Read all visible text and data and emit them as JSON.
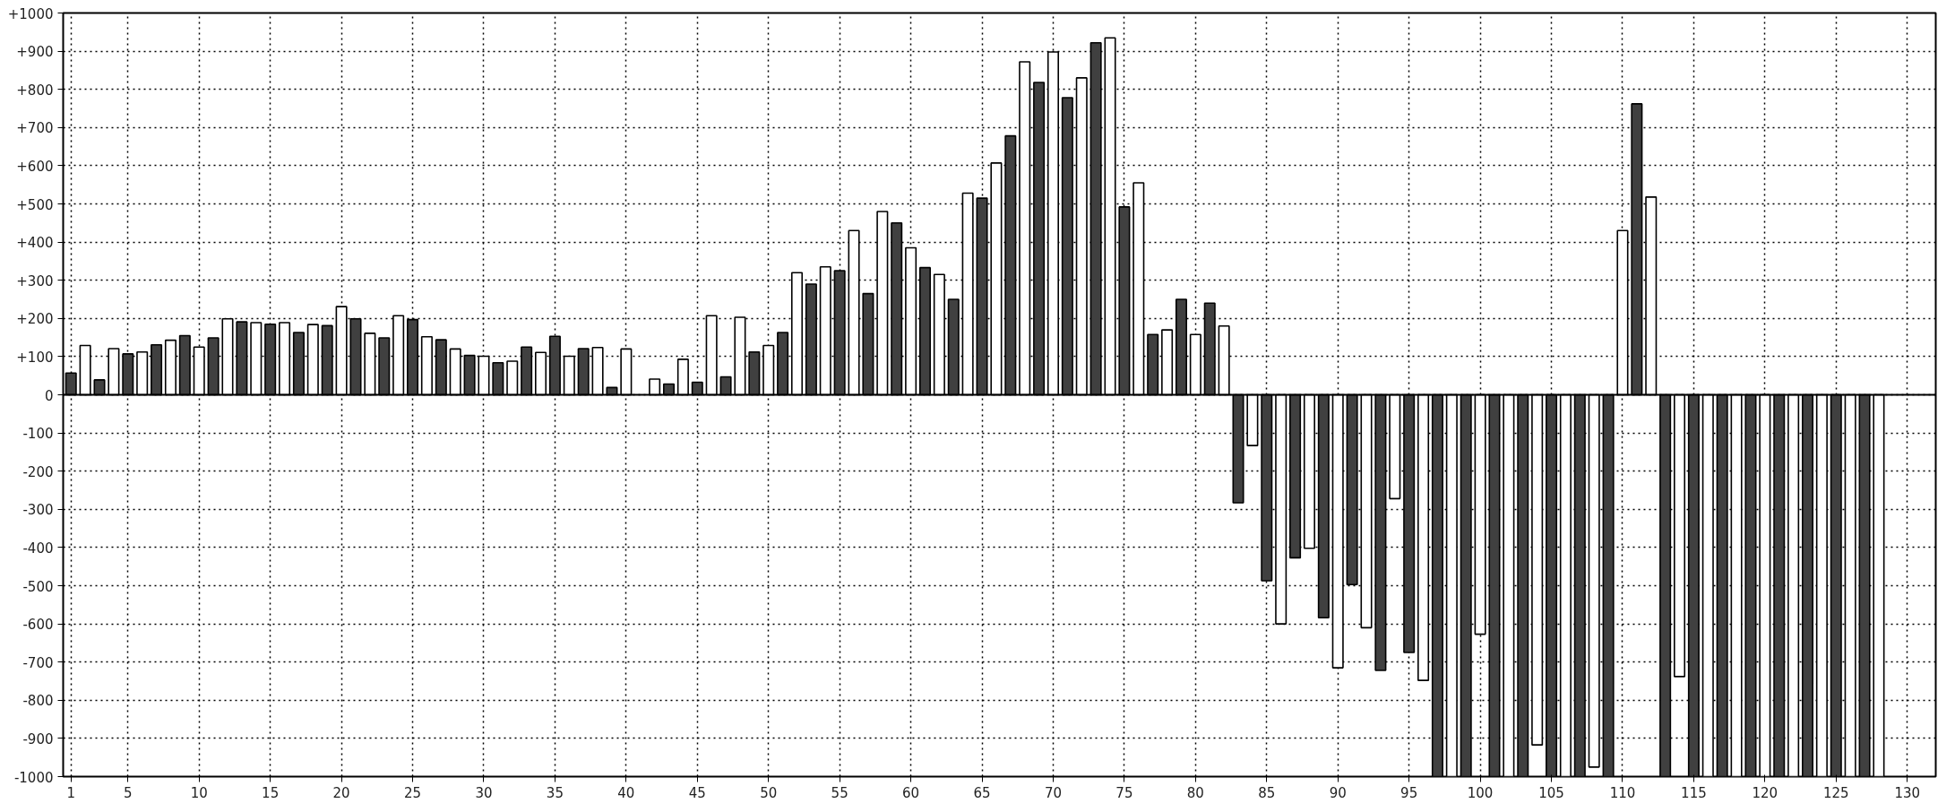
{
  "chart_data": {
    "type": "bar",
    "x": [
      1,
      2,
      3,
      4,
      5,
      6,
      7,
      8,
      9,
      10,
      11,
      12,
      13,
      14,
      15,
      16,
      17,
      18,
      19,
      20,
      21,
      22,
      23,
      24,
      25,
      26,
      27,
      28,
      29,
      30,
      31,
      32,
      33,
      34,
      35,
      36,
      37,
      38,
      39,
      40,
      41,
      42,
      43,
      44,
      45,
      46,
      47,
      48,
      49,
      50,
      51,
      52,
      53,
      54,
      55,
      56,
      57,
      58,
      59,
      60,
      61,
      62,
      63,
      64,
      65,
      66,
      67,
      68,
      69,
      70,
      71,
      72,
      73,
      74,
      75,
      76,
      77,
      78,
      79,
      80,
      81,
      82,
      83,
      84,
      85,
      86,
      87,
      88,
      89,
      90,
      91,
      92,
      93,
      94,
      95,
      96,
      97,
      98,
      99,
      100,
      101,
      102,
      103,
      104,
      105,
      106,
      107,
      108,
      109,
      110,
      111,
      112,
      113,
      114,
      115,
      116,
      117,
      118,
      119,
      120,
      121,
      122,
      123,
      124,
      125,
      126,
      127,
      128
    ],
    "values": [
      57,
      129,
      39,
      121,
      107,
      112,
      131,
      143,
      155,
      125,
      149,
      199,
      191,
      189,
      185,
      189,
      163,
      184,
      181,
      231,
      199,
      161,
      149,
      207,
      197,
      152,
      144,
      120,
      103,
      101,
      84,
      88,
      125,
      111,
      153,
      101,
      121,
      124,
      19,
      120,
      null,
      41,
      28,
      93,
      33,
      207,
      47,
      203,
      112,
      129,
      163,
      320,
      290,
      335,
      325,
      430,
      265,
      480,
      450,
      385,
      333,
      315,
      250,
      528,
      515,
      607,
      678,
      872,
      818,
      898,
      778,
      830,
      922,
      935,
      492,
      555,
      158,
      170,
      250,
      158,
      240,
      180,
      -283,
      -133,
      -487,
      -600,
      -427,
      -402,
      -584,
      -715,
      -497,
      -610,
      -722,
      -272,
      -675,
      -748,
      -1000,
      -1000,
      -1000,
      -627,
      -1000,
      -1000,
      -1000,
      -917,
      -1000,
      -1000,
      -1000,
      -975,
      -1000,
      430,
      762,
      518,
      -1000,
      -738,
      -1000,
      -1000,
      -1000,
      -1000,
      -1000,
      -1000,
      -1000,
      -1000,
      -1000,
      -1000,
      -1000,
      -1000,
      -1000,
      -1000
    ],
    "colors": [
      "#404040",
      "#ffffff",
      "#404040",
      "#ffffff",
      "#404040",
      "#ffffff",
      "#404040",
      "#ffffff",
      "#404040",
      "#ffffff",
      "#404040",
      "#ffffff",
      "#404040",
      "#ffffff",
      "#404040",
      "#ffffff",
      "#404040",
      "#ffffff",
      "#404040",
      "#ffffff",
      "#404040",
      "#ffffff",
      "#404040",
      "#ffffff",
      "#404040",
      "#ffffff",
      "#404040",
      "#ffffff",
      "#404040",
      "#ffffff",
      "#404040",
      "#ffffff",
      "#404040",
      "#ffffff",
      "#404040",
      "#ffffff",
      "#404040",
      "#ffffff",
      "#404040",
      "#ffffff",
      "#404040",
      "#ffffff",
      "#404040",
      "#ffffff",
      "#404040",
      "#ffffff",
      "#404040",
      "#ffffff",
      "#404040",
      "#ffffff",
      "#404040",
      "#ffffff",
      "#404040",
      "#ffffff",
      "#404040",
      "#ffffff",
      "#404040",
      "#ffffff",
      "#404040",
      "#ffffff",
      "#404040",
      "#ffffff",
      "#404040",
      "#ffffff",
      "#404040",
      "#ffffff",
      "#404040",
      "#ffffff",
      "#404040",
      "#ffffff",
      "#404040",
      "#ffffff",
      "#404040",
      "#ffffff",
      "#404040",
      "#ffffff",
      "#404040",
      "#ffffff",
      "#404040",
      "#ffffff",
      "#404040",
      "#ffffff",
      "#404040",
      "#ffffff",
      "#404040",
      "#ffffff",
      "#404040",
      "#ffffff",
      "#404040",
      "#ffffff",
      "#404040",
      "#ffffff",
      "#404040",
      "#ffffff",
      "#404040",
      "#ffffff",
      "#404040",
      "#ffffff",
      "#404040",
      "#ffffff",
      "#404040",
      "#ffffff",
      "#404040",
      "#ffffff",
      "#404040",
      "#ffffff",
      "#404040",
      "#ffffff",
      "#404040",
      "#ffffff",
      "#404040",
      "#ffffff",
      "#404040",
      "#ffffff",
      "#404040",
      "#ffffff",
      "#404040",
      "#ffffff",
      "#404040",
      "#ffffff",
      "#404040",
      "#ffffff",
      "#404040",
      "#ffffff",
      "#404040",
      "#ffffff",
      "#404040",
      "#ffffff"
    ],
    "xlim": [
      0.45,
      132
    ],
    "ylim": [
      -1000,
      1000
    ],
    "xticks": [
      1,
      5,
      10,
      15,
      20,
      25,
      30,
      35,
      40,
      45,
      50,
      55,
      60,
      65,
      70,
      75,
      80,
      85,
      90,
      95,
      100,
      105,
      110,
      115,
      120,
      125,
      130
    ],
    "yticks": [
      {
        "value": -1000,
        "label": "-1000"
      },
      {
        "value": -900,
        "label": "-900"
      },
      {
        "value": -800,
        "label": "-800"
      },
      {
        "value": -700,
        "label": "-700"
      },
      {
        "value": -600,
        "label": "-600"
      },
      {
        "value": -500,
        "label": "-500"
      },
      {
        "value": -400,
        "label": "-400"
      },
      {
        "value": -300,
        "label": "-300"
      },
      {
        "value": -200,
        "label": "-200"
      },
      {
        "value": -100,
        "label": "-100"
      },
      {
        "value": 0,
        "label": "0"
      },
      {
        "value": 100,
        "label": "+100"
      },
      {
        "value": 200,
        "label": "+200"
      },
      {
        "value": 300,
        "label": "+300"
      },
      {
        "value": 400,
        "label": "+400"
      },
      {
        "value": 500,
        "label": "+500"
      },
      {
        "value": 600,
        "label": "+600"
      },
      {
        "value": 700,
        "label": "+700"
      },
      {
        "value": 800,
        "label": "+800"
      },
      {
        "value": 900,
        "label": "+900"
      },
      {
        "value": 1000,
        "label": "+1000"
      }
    ],
    "grid": true,
    "line_style": "dotted"
  }
}
